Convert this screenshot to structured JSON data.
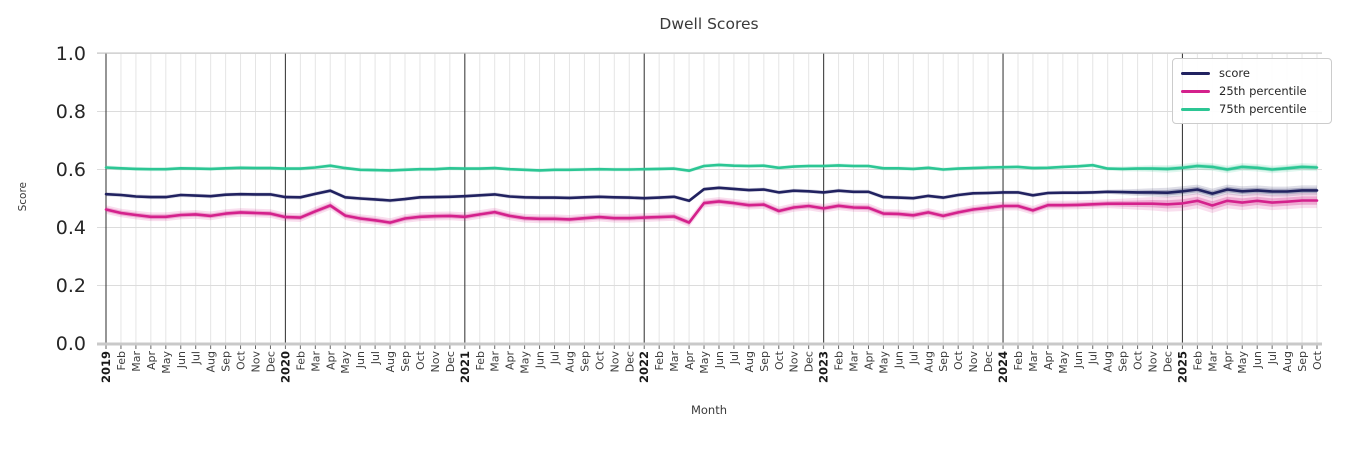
{
  "chart_data": {
    "type": "line",
    "title": "Dwell Scores",
    "xlabel": "Month",
    "ylabel": "Score",
    "ylim": [
      0.0,
      1.0
    ],
    "yticks": [
      0.0,
      0.2,
      0.4,
      0.6,
      0.8,
      1.0
    ],
    "grid": true,
    "legend_position": "upper right",
    "x_labels": [
      "2019",
      "Feb",
      "Mar",
      "Apr",
      "May",
      "Jun",
      "Jul",
      "Aug",
      "Sep",
      "Oct",
      "Nov",
      "Dec",
      "2020",
      "Feb",
      "Mar",
      "Apr",
      "May",
      "Jun",
      "Jul",
      "Aug",
      "Sep",
      "Oct",
      "Nov",
      "Dec",
      "2021",
      "Feb",
      "Mar",
      "Apr",
      "May",
      "Jun",
      "Jul",
      "Aug",
      "Sep",
      "Oct",
      "Nov",
      "Dec",
      "2022",
      "Feb",
      "Mar",
      "Apr",
      "May",
      "Jun",
      "Jul",
      "Aug",
      "Sep",
      "Oct",
      "Nov",
      "Dec",
      "2023",
      "Feb",
      "Mar",
      "Apr",
      "May",
      "Jun",
      "Jul",
      "Aug",
      "Sep",
      "Oct",
      "Nov",
      "Dec",
      "2024",
      "Feb",
      "Mar",
      "Apr",
      "May",
      "Jun",
      "Jul",
      "Aug",
      "Sep",
      "Oct",
      "Nov",
      "Dec",
      "2025",
      "Feb",
      "Mar",
      "Apr",
      "May",
      "Jun",
      "Jul",
      "Aug",
      "Sep",
      "Oct"
    ],
    "series": [
      {
        "name": "score",
        "color": "#212260",
        "band": {
          "base": 0.007,
          "wide": 0.017,
          "ramp_start": 68,
          "ramp_len": 4
        },
        "values": [
          0.515,
          0.512,
          0.507,
          0.505,
          0.505,
          0.512,
          0.51,
          0.508,
          0.513,
          0.515,
          0.514,
          0.514,
          0.505,
          0.504,
          0.516,
          0.527,
          0.504,
          0.5,
          0.497,
          0.493,
          0.498,
          0.504,
          0.505,
          0.506,
          0.508,
          0.511,
          0.514,
          0.507,
          0.504,
          0.503,
          0.503,
          0.502,
          0.504,
          0.506,
          0.504,
          0.503,
          0.501,
          0.503,
          0.506,
          0.492,
          0.532,
          0.537,
          0.533,
          0.529,
          0.531,
          0.521,
          0.527,
          0.525,
          0.521,
          0.527,
          0.523,
          0.523,
          0.505,
          0.503,
          0.501,
          0.509,
          0.503,
          0.512,
          0.518,
          0.519,
          0.521,
          0.521,
          0.511,
          0.519,
          0.52,
          0.52,
          0.521,
          0.523,
          0.522,
          0.521,
          0.521,
          0.52,
          0.525,
          0.531,
          0.517,
          0.531,
          0.525,
          0.528,
          0.524,
          0.524,
          0.528,
          0.528
        ]
      },
      {
        "name": "25th percentile",
        "color": "#d4218c",
        "band": {
          "base": 0.015,
          "wide": 0.026,
          "ramp_start": 68,
          "ramp_len": 4
        },
        "values": [
          0.462,
          0.45,
          0.443,
          0.437,
          0.437,
          0.443,
          0.445,
          0.44,
          0.448,
          0.452,
          0.45,
          0.448,
          0.436,
          0.434,
          0.456,
          0.476,
          0.441,
          0.431,
          0.425,
          0.417,
          0.431,
          0.437,
          0.439,
          0.44,
          0.437,
          0.445,
          0.453,
          0.44,
          0.432,
          0.43,
          0.43,
          0.428,
          0.432,
          0.436,
          0.432,
          0.432,
          0.434,
          0.436,
          0.438,
          0.417,
          0.484,
          0.49,
          0.484,
          0.477,
          0.479,
          0.457,
          0.469,
          0.474,
          0.466,
          0.475,
          0.469,
          0.468,
          0.448,
          0.447,
          0.442,
          0.452,
          0.44,
          0.452,
          0.462,
          0.468,
          0.474,
          0.474,
          0.459,
          0.477,
          0.477,
          0.478,
          0.48,
          0.482,
          0.482,
          0.482,
          0.482,
          0.48,
          0.483,
          0.492,
          0.476,
          0.492,
          0.486,
          0.492,
          0.486,
          0.489,
          0.493,
          0.493
        ]
      },
      {
        "name": "75th percentile",
        "color": "#2cc694",
        "band": {
          "base": 0.007,
          "wide": 0.013,
          "ramp_start": 68,
          "ramp_len": 4
        },
        "values": [
          0.607,
          0.604,
          0.602,
          0.601,
          0.601,
          0.604,
          0.603,
          0.602,
          0.604,
          0.606,
          0.605,
          0.605,
          0.603,
          0.603,
          0.607,
          0.613,
          0.605,
          0.599,
          0.598,
          0.597,
          0.599,
          0.601,
          0.601,
          0.604,
          0.603,
          0.603,
          0.605,
          0.601,
          0.599,
          0.597,
          0.599,
          0.599,
          0.6,
          0.601,
          0.6,
          0.6,
          0.601,
          0.602,
          0.603,
          0.596,
          0.612,
          0.616,
          0.613,
          0.612,
          0.613,
          0.606,
          0.61,
          0.612,
          0.612,
          0.614,
          0.612,
          0.612,
          0.604,
          0.604,
          0.602,
          0.606,
          0.6,
          0.603,
          0.605,
          0.607,
          0.608,
          0.609,
          0.605,
          0.606,
          0.609,
          0.611,
          0.615,
          0.603,
          0.602,
          0.603,
          0.603,
          0.602,
          0.606,
          0.612,
          0.609,
          0.6,
          0.609,
          0.606,
          0.6,
          0.604,
          0.609,
          0.607
        ]
      }
    ]
  }
}
